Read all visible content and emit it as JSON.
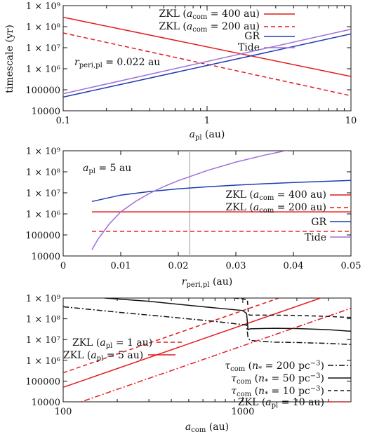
{
  "chart_data": [
    {
      "type": "line",
      "xscale": "log",
      "yscale": "log",
      "xlim": [
        0.1,
        10
      ],
      "ylim": [
        10000,
        1000000000
      ],
      "xticks": [
        "0.1",
        "1",
        "10"
      ],
      "yticks": [
        "10000",
        "100000",
        "1 × 10⁶",
        "1 × 10⁷",
        "1 × 10⁸",
        "1 × 10⁹"
      ],
      "xlabel": "a_pl (au)",
      "ylabel": "timescale (yr)",
      "annotation": "r_peri,pl = 0.022 au",
      "series": [
        {
          "name": "ZKL (a_com = 400 au)",
          "color": "#e41a1c",
          "dash": "solid",
          "x": [
            0.1,
            10
          ],
          "y": [
            280000000,
            430000
          ]
        },
        {
          "name": "ZKL (a_com = 200 au)",
          "color": "#e41a1c",
          "dash": "dashed",
          "x": [
            0.1,
            10
          ],
          "y": [
            50000000,
            52000
          ]
        },
        {
          "name": "GR",
          "color": "#1f3cb4",
          "dash": "solid",
          "x": [
            0.1,
            10
          ],
          "y": [
            45000,
            45000000
          ]
        },
        {
          "name": "Tide",
          "color": "#a070d8",
          "dash": "solid",
          "x": [
            0.1,
            10
          ],
          "y": [
            65000,
            75000000
          ]
        }
      ]
    },
    {
      "type": "line",
      "xscale": "linear",
      "yscale": "log",
      "xlim": [
        0,
        0.05
      ],
      "ylim": [
        10000,
        1000000000
      ],
      "xticks": [
        "0",
        "0.01",
        "0.02",
        "0.03",
        "0.04",
        "0.05"
      ],
      "yticks": [
        "10000",
        "100000",
        "1 × 10⁶",
        "1 × 10⁷",
        "1 × 10⁸",
        "1 × 10⁹"
      ],
      "xlabel": "r_peri,pl (au)",
      "annotation": "a_pl = 5 au",
      "vline": 0.022,
      "series": [
        {
          "name": "ZKL (a_com = 400 au)",
          "color": "#e41a1c",
          "dash": "solid",
          "x": [
            0.005,
            0.05
          ],
          "y": [
            1250000,
            1250000
          ]
        },
        {
          "name": "ZKL (a_com = 200 au)",
          "color": "#e41a1c",
          "dash": "dashed",
          "x": [
            0.005,
            0.05
          ],
          "y": [
            150000,
            150000
          ]
        },
        {
          "name": "GR",
          "color": "#1f3cb4",
          "dash": "solid",
          "x": [
            0.005,
            0.01,
            0.015,
            0.02,
            0.025,
            0.03,
            0.035,
            0.04,
            0.045,
            0.05
          ],
          "y": [
            3900000,
            7800000,
            11600000,
            15500000,
            19400000,
            23300000,
            27200000,
            31100000,
            35000000,
            38900000
          ]
        },
        {
          "name": "Tide",
          "color": "#a070d8",
          "dash": "solid",
          "x": [
            0.005,
            0.006,
            0.008,
            0.01,
            0.0125,
            0.015,
            0.0175,
            0.02,
            0.025,
            0.03,
            0.035,
            0.04,
            0.045
          ],
          "y": [
            20000,
            60000,
            330000,
            1250000,
            3800000,
            9500000,
            20000000,
            38000000,
            115000000,
            290000000,
            620000000,
            1200000000,
            2200000000
          ]
        }
      ]
    },
    {
      "type": "line",
      "xscale": "log",
      "yscale": "log",
      "xlim": [
        100,
        4000
      ],
      "ylim": [
        10000,
        1000000000
      ],
      "xticks": [
        "100",
        "1000"
      ],
      "yticks": [
        "10000",
        "100000",
        "1 × 10⁶",
        "1 × 10⁷",
        "1 × 10⁸",
        "1 × 10⁹"
      ],
      "xlabel": "a_com (au)",
      "series": [
        {
          "name": "ZKL (a_pl = 1 au)",
          "color": "#e41a1c",
          "dash": "dashed",
          "x": [
            100,
            4000
          ],
          "y": [
            250000,
            16000000000
          ]
        },
        {
          "name": "ZKL (a_pl = 5 au)",
          "color": "#e41a1c",
          "dash": "solid",
          "x": [
            100,
            4000
          ],
          "y": [
            50000,
            3200000000
          ]
        },
        {
          "name": "τ_com (n_* = 200 pc⁻³)",
          "color": "#111111",
          "dash": "dashdot",
          "x": [
            100,
            200,
            400,
            700,
            1050,
            1070,
            1100,
            1500,
            2000,
            3000,
            4000
          ],
          "y": [
            380000000,
            210000000,
            120000000,
            75000000,
            50000000,
            12000000,
            9000000,
            7500000,
            7200000,
            6500000,
            5800000
          ]
        },
        {
          "name": "τ_com (n_* = 50 pc⁻³)",
          "color": "#111111",
          "dash": "solid",
          "x": [
            170,
            300,
            600,
            1000,
            1050,
            1070,
            1100,
            1500,
            2000,
            3000,
            4000
          ],
          "y": [
            1000000000,
            700000000,
            380000000,
            250000000,
            180000000,
            30000000,
            33000000,
            35000000,
            34000000,
            30000000,
            25000000
          ]
        },
        {
          "name": "τ_com (n_* = 10 pc⁻³)",
          "color": "#111111",
          "dash": "dashed",
          "x": [
            900,
            1060,
            1075,
            1100,
            1500,
            2000,
            3000,
            4000
          ],
          "y": [
            1000000000,
            850000000,
            160000000,
            150000000,
            150000000,
            145000000,
            130000000,
            115000000
          ]
        },
        {
          "name": "ZKL (a_pl = 10 au)",
          "color": "#e41a1c",
          "dash": "dashdot",
          "x": [
            100,
            4000
          ],
          "y": [
            5000,
            320000000
          ]
        }
      ]
    }
  ],
  "labels": {
    "p1_leg1": "ZKL (a_com = 400 au)",
    "p1_leg2": "ZKL (a_com = 200 au)",
    "p1_leg3": "GR",
    "p1_leg4": "Tide",
    "p1_annot": "r_peri,pl = 0.022 au",
    "p1_xlabel": "a_pl (au)",
    "p1_ylabel": "timescale (yr)",
    "p2_annot": "a_pl = 5 au",
    "p2_xlabel": "r_peri,pl (au)",
    "p3_xlabel": "a_com (au)"
  }
}
